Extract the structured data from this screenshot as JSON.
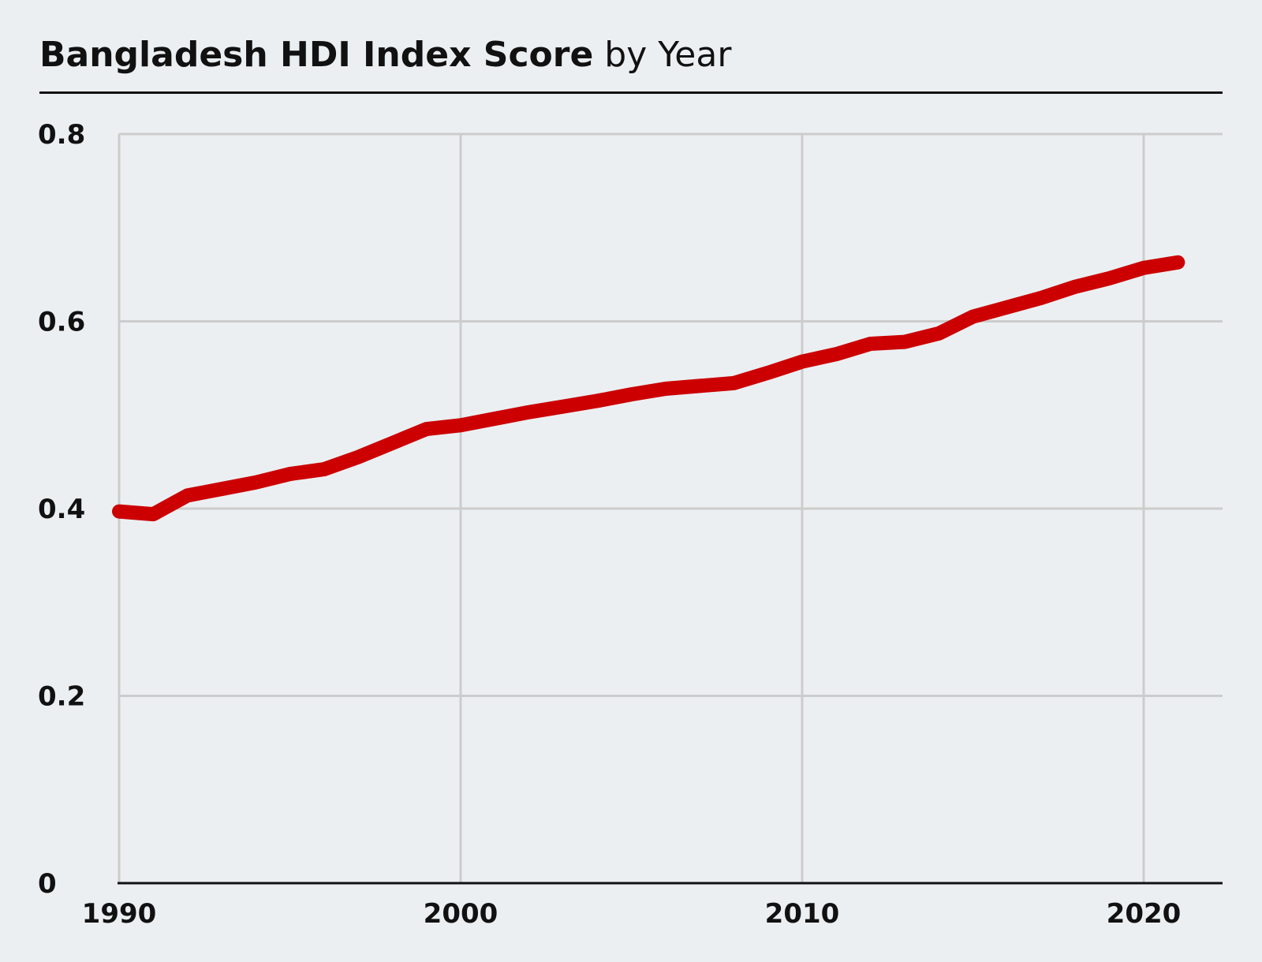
{
  "title": {
    "bold": "Bangladesh HDI Index Score",
    "rest": " by Year"
  },
  "colors": {
    "background": "#EBEFF2",
    "line": "#CC0000",
    "grid": "#CCCCCC",
    "axis": "#111111"
  },
  "chart_data": {
    "type": "line",
    "title": "Bangladesh HDI Index Score by Year",
    "xlabel": "",
    "ylabel": "",
    "xlim": [
      1990,
      2022
    ],
    "ylim": [
      0,
      0.8
    ],
    "xticks": [
      1990,
      2000,
      2010,
      2020
    ],
    "xtick_labels": [
      "1990",
      "2000",
      "2010",
      "2020"
    ],
    "yticks": [
      0,
      0.2,
      0.4,
      0.6,
      0.8
    ],
    "ytick_labels": [
      "0",
      "0.2",
      "0.4",
      "0.6",
      "0.8"
    ],
    "grid": true,
    "legend": "none",
    "series": [
      {
        "x": [
          1990,
          1991,
          1992,
          1993,
          1994,
          1995,
          1996,
          1997,
          1998,
          1999,
          2000,
          2001,
          2002,
          2003,
          2004,
          2005,
          2006,
          2007,
          2008,
          2009,
          2010,
          2011,
          2012,
          2013,
          2014,
          2015,
          2016,
          2017,
          2018,
          2019,
          2020,
          2021
        ],
        "y": [
          0.397,
          0.394,
          0.414,
          0.421,
          0.428,
          0.437,
          0.442,
          0.455,
          0.47,
          0.485,
          0.489,
          0.496,
          0.503,
          0.509,
          0.515,
          0.522,
          0.528,
          0.531,
          0.534,
          0.545,
          0.557,
          0.565,
          0.576,
          0.578,
          0.587,
          0.605,
          0.615,
          0.625,
          0.637,
          0.646,
          0.657,
          0.663
        ]
      }
    ]
  }
}
